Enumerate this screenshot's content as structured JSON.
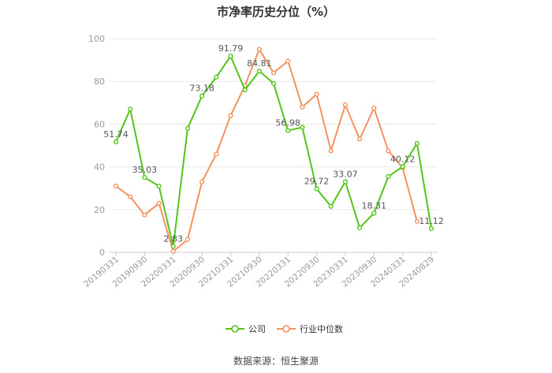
{
  "chart_data": {
    "type": "line",
    "title": "市净率历史分位（%）",
    "ylim": [
      0,
      100
    ],
    "yticks": [
      0,
      20,
      40,
      60,
      80,
      100
    ],
    "grid": true,
    "legend_position": "bottom-center",
    "tick_labels": [
      "20190331",
      "20190930",
      "20200331",
      "20200930",
      "20210331",
      "20210930",
      "20220331",
      "20220930",
      "20230331",
      "20230930",
      "20240331",
      "20240829"
    ],
    "x": [
      "20190331",
      "20190630",
      "20190930",
      "20191231",
      "20200331",
      "20200630",
      "20200930",
      "20201231",
      "20210331",
      "20210630",
      "20210930",
      "20211231",
      "20220331",
      "20220630",
      "20220930",
      "20221231",
      "20230331",
      "20230630",
      "20230930",
      "20231231",
      "20240331",
      "20240630",
      "20240829"
    ],
    "series": [
      {
        "name": "公司",
        "color": "#52c41a",
        "values": [
          51.74,
          67,
          35.03,
          31,
          2.83,
          58,
          73.18,
          82,
          91.79,
          76,
          84.81,
          79,
          56.98,
          58.5,
          29.72,
          21.5,
          33.07,
          11.5,
          18.31,
          35.5,
          40.12,
          51,
          11.12
        ],
        "labels": {
          "0": "51.74",
          "2": "35.03",
          "4": "2.83",
          "6": "73.18",
          "8": "91.79",
          "10": "84.81",
          "12": "56.98",
          "14": "29.72",
          "16": "33.07",
          "18": "18.31",
          "20": "40.12",
          "22": "11.12"
        }
      },
      {
        "name": "行业中位数",
        "color": "#f5915e",
        "values": [
          31,
          26,
          17.5,
          23,
          0.5,
          6,
          33,
          46,
          64,
          78,
          95,
          84,
          89.5,
          68,
          74,
          47.5,
          69,
          53,
          67.5,
          47.5,
          39.5,
          14.5,
          null
        ]
      }
    ]
  },
  "source_text": "数据来源：恒生聚源"
}
